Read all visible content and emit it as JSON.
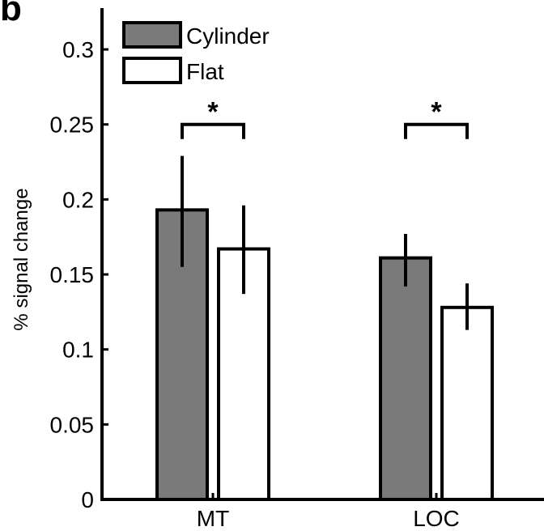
{
  "panel_label": "b",
  "chart_data": {
    "type": "bar",
    "categories": [
      "MT",
      "LOC"
    ],
    "ylabel": "% signal change",
    "ylim": [
      0,
      0.32
    ],
    "yticks": [
      0,
      0.05,
      0.1,
      0.15,
      0.2,
      0.25,
      0.3
    ],
    "ytick_labels": [
      "0",
      "0.05",
      "0.1",
      "0.15",
      "0.2",
      "0.25",
      "0.3"
    ],
    "legend_position": "top-left",
    "grid": false,
    "series": [
      {
        "name": "Cylinder",
        "color": "#7a7a7a",
        "values": [
          0.193,
          0.161
        ],
        "err_low": [
          0.155,
          0.142
        ],
        "err_high": [
          0.229,
          0.177
        ]
      },
      {
        "name": "Flat",
        "color": "#ffffff",
        "values": [
          0.167,
          0.128
        ],
        "err_low": [
          0.137,
          0.113
        ],
        "err_high": [
          0.196,
          0.144
        ]
      }
    ],
    "annotations": [
      {
        "category": "MT",
        "text": "*",
        "bracket_level": 0.25
      },
      {
        "category": "LOC",
        "text": "*",
        "bracket_level": 0.25
      }
    ]
  }
}
